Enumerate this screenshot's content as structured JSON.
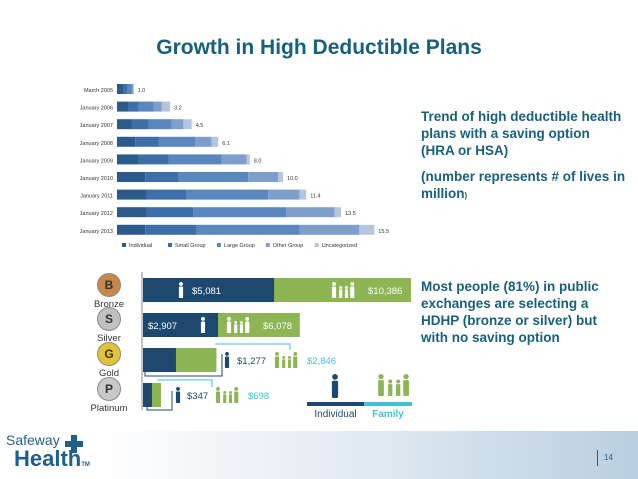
{
  "title": "Growth in High Deductible Plans",
  "trend_text": "Trend of high deductible health plans with a saving option (HRA or HSA)",
  "note_text": "(number represents # of lives in million",
  "note_tail": ")",
  "exchange_text": "Most people (81%) in public exchanges are selecting a HDHP (bronze or silver) but with no saving option",
  "logo": {
    "line1": "Safeway",
    "line2": "Health",
    "tm": "TM"
  },
  "page_number": "14",
  "colors": {
    "title": "#17607e",
    "individual": "#1d4970",
    "family": "#8db554",
    "family_label": "#3fc4d1",
    "legend_individual_bg": "#1d4970",
    "legend_family_bg": "#3fc4d1"
  },
  "chart_data": [
    {
      "type": "bar",
      "orientation": "horizontal",
      "stacked": true,
      "categories": [
        "March 2005",
        "January 2006",
        "January 2007",
        "January 2008",
        "January 2009",
        "January 2010",
        "January 2011",
        "January 2012",
        "January 2013"
      ],
      "totals": [
        1.0,
        3.2,
        4.5,
        6.1,
        8.0,
        10.0,
        11.4,
        13.5,
        15.5
      ],
      "total_labels": [
        "1.0",
        "3.2",
        "4.5",
        "6.1",
        "8.0",
        "10.0",
        "11.4",
        "13.5",
        "15.5"
      ],
      "series": [
        {
          "name": "Individual",
          "values": [
            0.4,
            0.7,
            0.9,
            1.1,
            1.3,
            1.7,
            1.8,
            1.8,
            1.7
          ],
          "color": "#2c5a8a"
        },
        {
          "name": "Small Group",
          "values": [
            0.2,
            0.6,
            1.0,
            1.4,
            1.8,
            2.0,
            2.4,
            2.8,
            3.1
          ],
          "color": "#3d6ea8"
        },
        {
          "name": "Large Group",
          "values": [
            0.3,
            0.9,
            1.4,
            2.2,
            3.2,
            4.2,
            4.9,
            5.6,
            6.2
          ],
          "color": "#5b87bf"
        },
        {
          "name": "Other Group",
          "values": [
            0.1,
            0.5,
            0.7,
            1.0,
            1.5,
            1.8,
            1.9,
            2.9,
            3.6
          ],
          "color": "#7e9fcb"
        },
        {
          "name": "Uncategorized",
          "values": [
            0.0,
            0.5,
            0.5,
            0.4,
            0.2,
            0.3,
            0.4,
            0.4,
            0.9
          ],
          "color": "#b4c6de"
        }
      ],
      "xlim": [
        0,
        16
      ]
    },
    {
      "type": "bar",
      "orientation": "horizontal",
      "categories": [
        "Bronze",
        "Silver",
        "Gold",
        "Platinum"
      ],
      "tier_letters": [
        "B",
        "S",
        "G",
        "P"
      ],
      "tier_colors": [
        "#c9874a",
        "#c0c0c0",
        "#e3c233",
        "#c8c8c8"
      ],
      "series": [
        {
          "name": "Individual",
          "values": [
            5081,
            2907,
            1277,
            347
          ],
          "labels": [
            "$5,081",
            "$2,907",
            "$1,277",
            "$347"
          ]
        },
        {
          "name": "Family",
          "values": [
            10386,
            6078,
            2846,
            698
          ],
          "labels": [
            "$10,386",
            "$6,078",
            "$2,846",
            "$698"
          ]
        }
      ],
      "legend": [
        "Individual",
        "Family"
      ]
    }
  ]
}
